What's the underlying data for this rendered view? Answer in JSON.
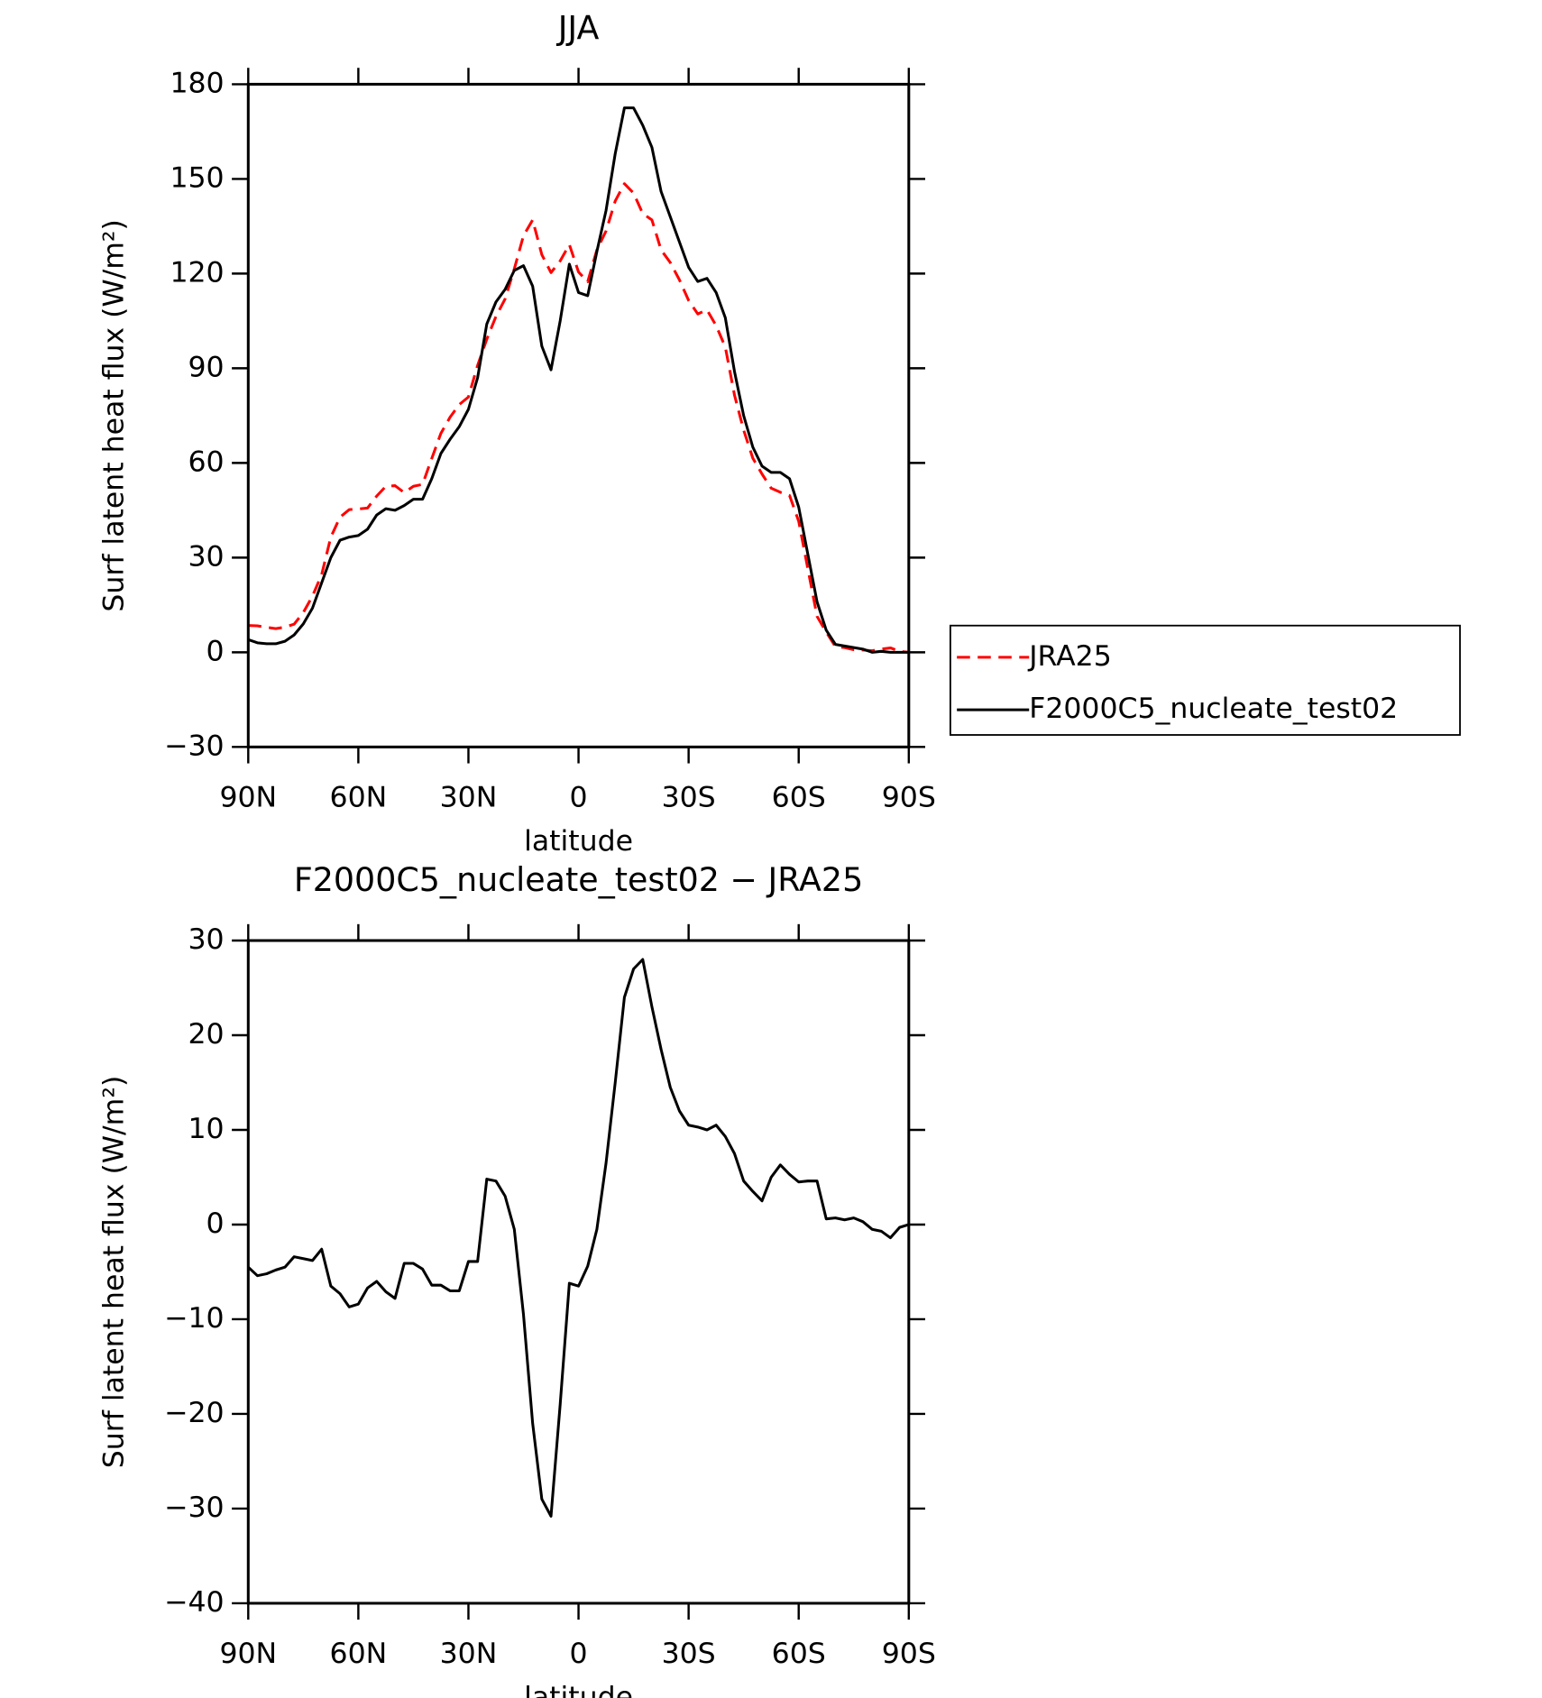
{
  "chart_data": [
    {
      "type": "line",
      "title": "JJA",
      "xlabel": "latitude",
      "ylabel": "Surf latent heat flux (W/m²)",
      "x": [
        90,
        87.5,
        85,
        82.5,
        80,
        77.5,
        75,
        72.5,
        70,
        67.5,
        65,
        62.5,
        60,
        57.5,
        55,
        52.5,
        50,
        47.5,
        45,
        42.5,
        40,
        37.5,
        35,
        32.5,
        30,
        27.5,
        25,
        22.5,
        20,
        17.5,
        15,
        12.5,
        10,
        7.5,
        5,
        2.5,
        0,
        -2.5,
        -5,
        -7.5,
        -10,
        -12.5,
        -15,
        -17.5,
        -20,
        -22.5,
        -25,
        -27.5,
        -30,
        -32.5,
        -35,
        -37.5,
        -40,
        -42.5,
        -45,
        -47.5,
        -50,
        -52.5,
        -55,
        -57.5,
        -60,
        -62.5,
        -65,
        -67.5,
        -70,
        -72.5,
        -75,
        -77.5,
        -80,
        -82.5,
        -85,
        -87.5,
        -90
      ],
      "xlim": [
        90,
        -90
      ],
      "xticks": [
        {
          "value": 90,
          "label": "90N"
        },
        {
          "value": 60,
          "label": "60N"
        },
        {
          "value": 30,
          "label": "30N"
        },
        0,
        {
          "value": -30,
          "label": "30S"
        },
        {
          "value": -60,
          "label": "60S"
        },
        {
          "value": -90,
          "label": "90S"
        }
      ],
      "ylim": [
        -30,
        180
      ],
      "yticks": [
        {
          "value": -30,
          "label": "−30"
        },
        0,
        30,
        60,
        90,
        120,
        150,
        180
      ],
      "legend": "right",
      "series": [
        {
          "name": "JRA25",
          "color": "#ff0000",
          "dashed": true,
          "values": [
            8.5,
            8.4,
            7.9,
            7.5,
            8,
            8.9,
            12.6,
            17.8,
            24.6,
            36.5,
            42.8,
            45.2,
            45.4,
            45.7,
            49.5,
            52.6,
            52.8,
            50.6,
            52.6,
            53.2,
            61.4,
            69.4,
            74.5,
            78.5,
            80.9,
            90.9,
            99.2,
            106.4,
            112,
            121.5,
            132,
            137,
            126,
            120.3,
            124,
            129.2,
            120.5,
            117.4,
            127.5,
            133.5,
            143,
            148.5,
            145.5,
            139,
            137,
            127.5,
            123.5,
            118,
            111.5,
            107.2,
            108.5,
            103.5,
            96.7,
            81.5,
            70.4,
            61.5,
            56.5,
            52,
            50.7,
            49.7,
            41.5,
            26.4,
            11.4,
            6.4,
            1.8,
            1.5,
            0.8,
            0.7,
            0.5,
            1,
            1.4,
            0.3,
            0
          ]
        },
        {
          "name": "F2000C5_nucleate_test02",
          "color": "#000000",
          "dashed": false,
          "values": [
            4,
            3,
            2.7,
            2.7,
            3.5,
            5.5,
            9,
            14,
            22,
            30,
            35.5,
            36.5,
            37,
            39,
            43.5,
            45.5,
            45,
            46.5,
            48.5,
            48.5,
            55,
            63,
            67.5,
            71.5,
            77,
            87,
            104,
            111,
            115,
            121,
            122.5,
            116,
            97,
            89.5,
            105,
            123,
            114,
            113,
            127,
            140,
            158,
            172.5,
            172.5,
            167,
            160,
            146,
            138,
            130,
            122,
            117.5,
            118.5,
            114,
            106,
            89,
            75,
            65,
            59,
            57,
            57,
            55,
            46,
            31,
            16,
            7,
            2.5,
            2,
            1.5,
            1,
            0,
            0.3,
            0,
            0,
            0
          ]
        }
      ]
    },
    {
      "type": "line",
      "title": "F2000C5_nucleate_test02 − JRA25",
      "xlabel": "latitude",
      "ylabel": "Surf latent heat flux (W/m²)",
      "x": [
        90,
        87.5,
        85,
        82.5,
        80,
        77.5,
        75,
        72.5,
        70,
        67.5,
        65,
        62.5,
        60,
        57.5,
        55,
        52.5,
        50,
        47.5,
        45,
        42.5,
        40,
        37.5,
        35,
        32.5,
        30,
        27.5,
        25,
        22.5,
        20,
        17.5,
        15,
        12.5,
        10,
        7.5,
        5,
        2.5,
        0,
        -2.5,
        -5,
        -7.5,
        -10,
        -12.5,
        -15,
        -17.5,
        -20,
        -22.5,
        -25,
        -27.5,
        -30,
        -32.5,
        -35,
        -37.5,
        -40,
        -42.5,
        -45,
        -47.5,
        -50,
        -52.5,
        -55,
        -57.5,
        -60,
        -62.5,
        -65,
        -67.5,
        -70,
        -72.5,
        -75,
        -77.5,
        -80,
        -82.5,
        -85,
        -87.5,
        -90
      ],
      "xlim": [
        90,
        -90
      ],
      "xticks": [
        {
          "value": 90,
          "label": "90N"
        },
        {
          "value": 60,
          "label": "60N"
        },
        {
          "value": 30,
          "label": "30N"
        },
        0,
        {
          "value": -30,
          "label": "30S"
        },
        {
          "value": -60,
          "label": "60S"
        },
        {
          "value": -90,
          "label": "90S"
        }
      ],
      "ylim": [
        -40,
        30
      ],
      "yticks": [
        {
          "value": -40,
          "label": "−40"
        },
        {
          "value": -30,
          "label": "−30"
        },
        {
          "value": -20,
          "label": "−20"
        },
        {
          "value": -10,
          "label": "−10"
        },
        0,
        10,
        20,
        30
      ],
      "series": [
        {
          "color": "#000000",
          "dashed": false,
          "values": [
            -4.5,
            -5.4,
            -5.2,
            -4.8,
            -4.5,
            -3.4,
            -3.6,
            -3.8,
            -2.6,
            -6.5,
            -7.3,
            -8.7,
            -8.4,
            -6.7,
            -6,
            -7.1,
            -7.8,
            -4.1,
            -4.1,
            -4.7,
            -6.4,
            -6.4,
            -7,
            -7,
            -3.9,
            -3.9,
            4.8,
            4.6,
            3,
            -0.5,
            -9.5,
            -21,
            -29,
            -30.8,
            -19,
            -6.2,
            -6.5,
            -4.4,
            -0.5,
            6.5,
            15,
            24,
            27,
            28,
            23,
            18.5,
            14.5,
            12,
            10.5,
            10.3,
            10,
            10.5,
            9.3,
            7.5,
            4.6,
            3.5,
            2.5,
            5,
            6.3,
            5.3,
            4.5,
            4.6,
            4.6,
            0.6,
            0.7,
            0.5,
            0.7,
            0.3,
            -0.5,
            -0.7,
            -1.4,
            -0.3,
            0
          ]
        }
      ]
    }
  ]
}
